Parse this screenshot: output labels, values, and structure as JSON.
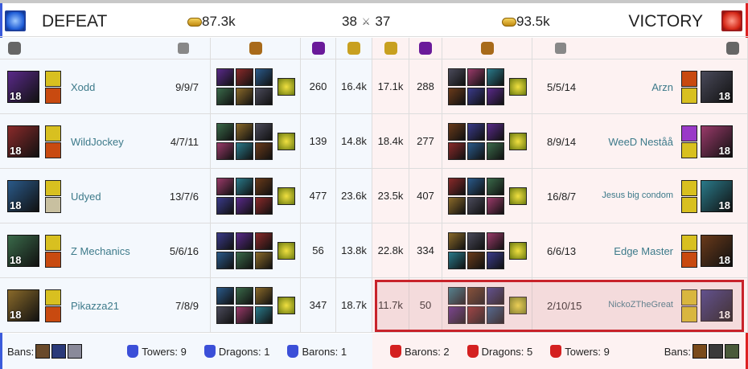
{
  "header": {
    "left": {
      "result": "DEFEAT",
      "gold": "87.3k",
      "kills": "38"
    },
    "right": {
      "result": "VICTORY",
      "gold": "93.5k",
      "kills": "37"
    }
  },
  "columns": [
    "champion-icon",
    "kda-icon",
    "items-icon",
    "cs-icon",
    "gold-icon"
  ],
  "colors": {
    "blue": "#3b5bdb",
    "red": "#d22222",
    "name": "#3d7a8a",
    "highlight_border": "#c8232b"
  },
  "blue_team": [
    {
      "name": "Xodd",
      "kda": "9/9/7",
      "cs": "260",
      "gold": "16.4k",
      "level": "18"
    },
    {
      "name": "WildJockey",
      "kda": "4/7/11",
      "cs": "139",
      "gold": "14.8k",
      "level": "18"
    },
    {
      "name": "Udyed",
      "kda": "13/7/6",
      "cs": "477",
      "gold": "23.6k",
      "level": "18"
    },
    {
      "name": "Z Mechanics",
      "kda": "5/6/16",
      "cs": "56",
      "gold": "13.8k",
      "level": "18"
    },
    {
      "name": "Pikazza21",
      "kda": "7/8/9",
      "cs": "347",
      "gold": "18.7k",
      "level": "18"
    }
  ],
  "red_team": [
    {
      "name": "Arzn",
      "kda": "5/5/14",
      "cs": "288",
      "gold": "17.1k",
      "level": "18"
    },
    {
      "name": "WeeD Neståå",
      "kda": "8/9/14",
      "cs": "277",
      "gold": "18.4k",
      "level": "18"
    },
    {
      "name": "Jesus big condom",
      "kda": "16/8/7",
      "cs": "407",
      "gold": "23.5k",
      "level": "18"
    },
    {
      "name": "Edge Master",
      "kda": "6/6/13",
      "cs": "334",
      "gold": "22.8k",
      "level": "18"
    },
    {
      "name": "NickoZTheGreat",
      "kda": "2/10/15",
      "cs": "50",
      "gold": "11.7k",
      "level": "18",
      "highlighted": true
    }
  ],
  "footer": {
    "left": {
      "bans_label": "Bans:",
      "towers": "Towers: 9",
      "dragons": "Dragons: 1",
      "barons": "Barons: 1"
    },
    "right": {
      "bans_label": "Bans:",
      "towers": "Towers: 9",
      "dragons": "Dragons: 5",
      "barons": "Barons: 2"
    }
  }
}
